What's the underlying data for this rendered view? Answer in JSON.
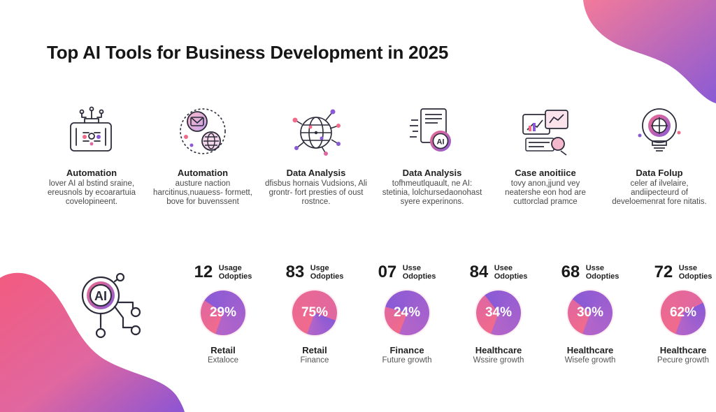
{
  "title": "Top AI Tools for Business Development in 2025",
  "colors": {
    "pink": "#f06a8c",
    "purple": "#8a5ad6",
    "ink": "#2b2b3a"
  },
  "tools": [
    {
      "icon": "automation-briefcase-icon",
      "name": "Automation",
      "desc": "lover AI al bstind sraine, ereusnols by ecoarartuia covelopineent."
    },
    {
      "icon": "email-globe-icon",
      "name": "Automation",
      "desc": "austure naction harcitinus,nuauess- formett, bove for buvenssent"
    },
    {
      "icon": "network-globe-icon",
      "name": "Data Analysis",
      "desc": "dfisbus hornais Vudsions, Ali grontr- fort presties of oust rostnce."
    },
    {
      "icon": "ai-document-icon",
      "name": "Data Analysis",
      "desc": "tofhmeutlquault, ne AI: stetinia, lolchursedaonohast syere experinons."
    },
    {
      "icon": "monitor-search-icon",
      "name": "Case anoitiice",
      "desc": "tovy anon,jjund vey neatershe eon hod are cuttorclad pramce"
    },
    {
      "icon": "lightbulb-target-icon",
      "name": "Data Folup",
      "desc": "celer af ilvelaire, andiipecteurd of develoemenrat fore nitatis."
    }
  ],
  "stats": [
    {
      "number": "12",
      "label_top": "Usage",
      "label_bottom": "Odopties",
      "percent_text": "29%",
      "percent": 29,
      "category": "Retail",
      "sub": "Extaloce"
    },
    {
      "number": "83",
      "label_top": "Usge",
      "label_bottom": "Odopties",
      "percent_text": "75%",
      "percent": 75,
      "category": "Retail",
      "sub": "Finance"
    },
    {
      "number": "07",
      "label_top": "Usse",
      "label_bottom": "Odopties",
      "percent_text": "24%",
      "percent": 24,
      "category": "Finance",
      "sub": "Future growth"
    },
    {
      "number": "84",
      "label_top": "Usee",
      "label_bottom": "Odopties",
      "percent_text": "34%",
      "percent": 34,
      "category": "Healthcare",
      "sub": "Wssire growth"
    },
    {
      "number": "68",
      "label_top": "Usse",
      "label_bottom": "Odopties",
      "percent_text": "30%",
      "percent": 30,
      "category": "Healthcare",
      "sub": "Wisefe growth"
    },
    {
      "number": "72",
      "label_top": "Usse",
      "label_bottom": "Odopties",
      "percent_text": "62%",
      "percent": 62,
      "category": "Healthcare",
      "sub": "Pecure growth"
    }
  ],
  "hero_icon": {
    "icon": "ai-circuit-icon",
    "text": "AI"
  }
}
